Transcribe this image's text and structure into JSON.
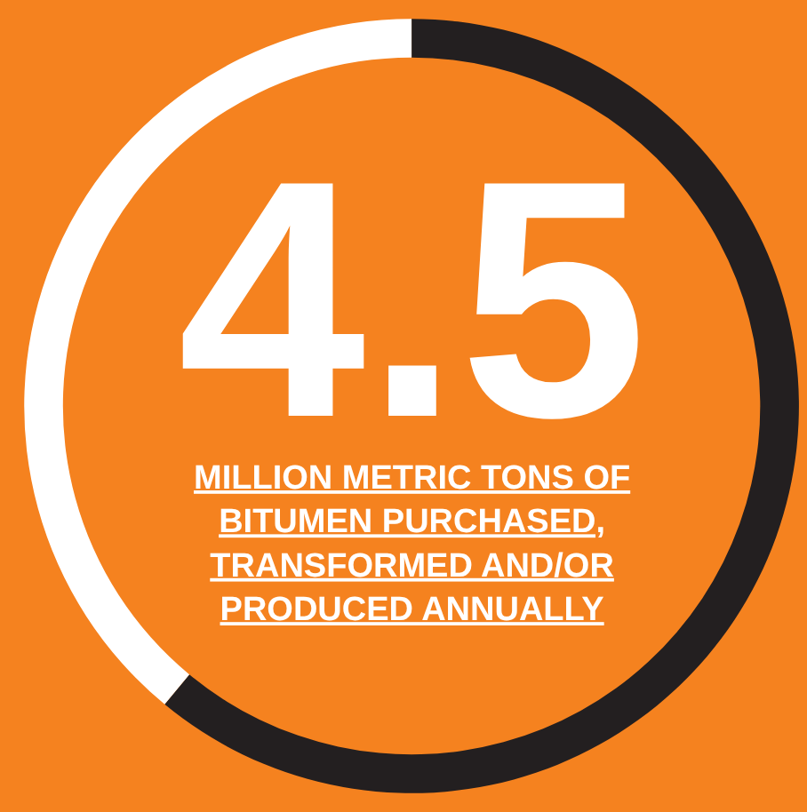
{
  "chart_data": {
    "type": "donut",
    "categories": [
      null,
      null
    ],
    "values": [
      61,
      39
    ],
    "colors": [
      "#231f20",
      "#ffffff"
    ],
    "legend": false,
    "annotations": [
      "4.5",
      "MILLION METRIC TONS OF\nBITUMEN PURCHASED,\nTRANSFORMED AND/OR\nPRODUCED ANNUALLY"
    ]
  }
}
